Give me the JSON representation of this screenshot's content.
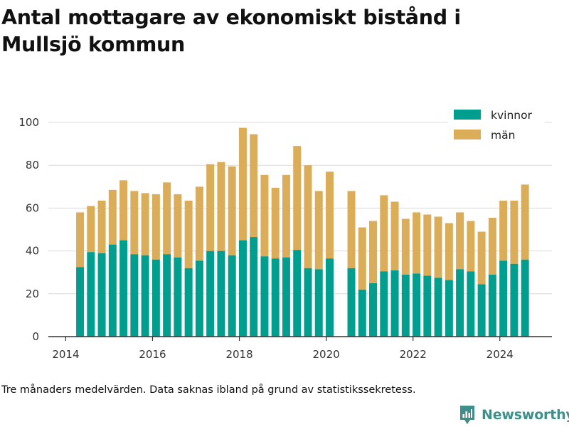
{
  "title": "Antal mottagare av ekonomiskt bistånd i Mullsjö kommun",
  "caption": "Tre månaders medelvärden. Data saknas ibland på grund av statistikssekretess.",
  "brand": {
    "name": "Newsworthy",
    "logo_icon": "bar-chart-logo-icon",
    "color": "#3d8f89"
  },
  "colors": {
    "kvinnor": "#009e8f",
    "man": "#dcad58",
    "grid": "#d9d9d9",
    "axis": "#333333"
  },
  "chart_data": {
    "type": "bar",
    "stacked": true,
    "title": "Antal mottagare av ekonomiskt bistånd i Mullsjö kommun",
    "xlabel": "",
    "ylabel": "",
    "ylim": [
      0,
      105
    ],
    "xlim": [
      2013.6,
      2025.2
    ],
    "y_ticks": [
      0,
      20,
      40,
      60,
      80,
      100
    ],
    "x_ticks": [
      2014,
      2016,
      2018,
      2020,
      2022,
      2024
    ],
    "grid": true,
    "legend_position": "top-right",
    "x": [
      2014.33,
      2014.58,
      2014.83,
      2015.08,
      2015.33,
      2015.58,
      2015.83,
      2016.08,
      2016.33,
      2016.58,
      2016.83,
      2017.08,
      2017.33,
      2017.58,
      2017.83,
      2018.08,
      2018.33,
      2018.58,
      2018.83,
      2019.08,
      2019.33,
      2019.58,
      2019.83,
      2020.08,
      2020.58,
      2020.83,
      2021.08,
      2021.33,
      2021.58,
      2021.83,
      2022.08,
      2022.33,
      2022.58,
      2022.83,
      2023.08,
      2023.33,
      2023.58,
      2023.83,
      2024.08,
      2024.33,
      2024.58
    ],
    "series": [
      {
        "name": "kvinnor",
        "values": [
          32.5,
          39.5,
          39,
          43,
          45,
          38.5,
          38,
          36,
          38.5,
          37,
          32,
          35.5,
          40,
          40,
          38,
          45,
          46.5,
          37.5,
          36.5,
          37,
          40.5,
          32,
          31.5,
          36.5,
          32,
          22,
          25,
          30.5,
          31,
          29,
          29.5,
          28.5,
          27.5,
          26.5,
          31.5,
          30.5,
          24.5,
          29,
          35.5,
          34,
          36
        ]
      },
      {
        "name": "män",
        "values": [
          25.5,
          21.5,
          24.5,
          25.5,
          28,
          29.5,
          29,
          30.5,
          33.5,
          29.5,
          31.5,
          34.5,
          40.5,
          41.5,
          41.5,
          52.5,
          48,
          38,
          33,
          38.5,
          48.5,
          48,
          36.5,
          40.5,
          36,
          29,
          29,
          35.5,
          32,
          26,
          28.5,
          28.5,
          28.5,
          26.5,
          26.5,
          23.5,
          24.5,
          26.5,
          28,
          29.5,
          35
        ]
      }
    ]
  }
}
